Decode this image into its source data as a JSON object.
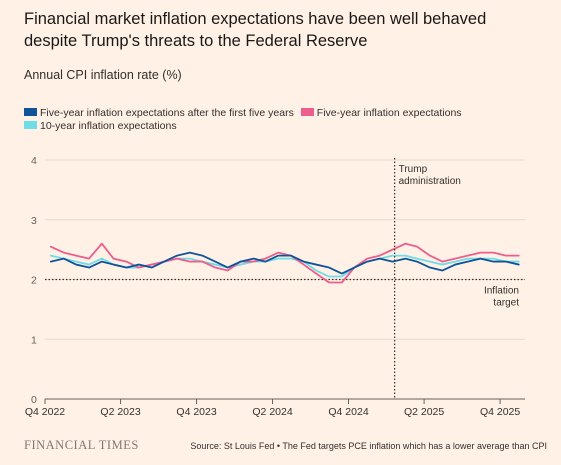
{
  "header": {
    "title": "Financial market inflation expectations have been well behaved despite Trump's threats to the Federal Reserve",
    "subtitle": "Annual CPI inflation rate (%)"
  },
  "footer": {
    "logo": "FINANCIAL TIMES",
    "source": "Source: St Louis Fed • The Fed targets PCE inflation which has a lower average than CPI"
  },
  "chart_data": {
    "type": "line",
    "ylabel": "Annual CPI inflation rate (%)",
    "ylim": [
      0,
      4
    ],
    "yticks": [
      0,
      1,
      2,
      3,
      4
    ],
    "xlim": [
      "2022-10-01",
      "2025-11-30"
    ],
    "xtick_labels": [
      {
        "label": "Q4 2022",
        "date": "2022-10-01"
      },
      {
        "label": "Q2 2023",
        "date": "2023-04-01"
      },
      {
        "label": "Q4 2023",
        "date": "2023-10-01"
      },
      {
        "label": "Q2 2024",
        "date": "2024-04-01"
      },
      {
        "label": "Q4 2024",
        "date": "2024-10-01"
      },
      {
        "label": "Q2 2025",
        "date": "2025-04-01"
      },
      {
        "label": "Q4 2025",
        "date": "2025-10-01"
      }
    ],
    "grid": true,
    "legend_position": "top-left",
    "annotations": [
      {
        "text": "Trump administration",
        "date": "2025-01-20"
      },
      {
        "text": "Inflation target",
        "value": 2
      }
    ],
    "colors": {
      "five_five": "#0f5499",
      "five_year": "#eb5e8d",
      "ten_year": "#70dce6",
      "background": "#fff1e5",
      "grid": "#e6d9ce",
      "axis": "#66605c"
    },
    "x": [
      "2022-10",
      "2022-11",
      "2022-12",
      "2023-01",
      "2023-02",
      "2023-03",
      "2023-04",
      "2023-05",
      "2023-06",
      "2023-07",
      "2023-08",
      "2023-09",
      "2023-10",
      "2023-11",
      "2023-12",
      "2024-01",
      "2024-02",
      "2024-03",
      "2024-04",
      "2024-05",
      "2024-06",
      "2024-07",
      "2024-08",
      "2024-09",
      "2024-10",
      "2024-11",
      "2024-12",
      "2025-01",
      "2025-02",
      "2025-03",
      "2025-04",
      "2025-05",
      "2025-06",
      "2025-07",
      "2025-08",
      "2025-09",
      "2025-10",
      "2025-11"
    ],
    "series": [
      {
        "name": "Five-year inflation expectations after the first five years",
        "values": [
          2.3,
          2.35,
          2.25,
          2.2,
          2.3,
          2.25,
          2.2,
          2.25,
          2.2,
          2.3,
          2.4,
          2.45,
          2.4,
          2.3,
          2.2,
          2.3,
          2.35,
          2.3,
          2.4,
          2.4,
          2.3,
          2.25,
          2.2,
          2.1,
          2.2,
          2.3,
          2.35,
          2.3,
          2.35,
          2.3,
          2.2,
          2.15,
          2.25,
          2.3,
          2.35,
          2.3,
          2.3,
          2.25
        ]
      },
      {
        "name": "Five-year inflation expectations",
        "values": [
          2.55,
          2.45,
          2.4,
          2.35,
          2.6,
          2.35,
          2.3,
          2.2,
          2.25,
          2.3,
          2.35,
          2.3,
          2.3,
          2.2,
          2.15,
          2.3,
          2.3,
          2.35,
          2.45,
          2.4,
          2.25,
          2.1,
          1.95,
          1.95,
          2.2,
          2.35,
          2.4,
          2.5,
          2.6,
          2.55,
          2.4,
          2.3,
          2.35,
          2.4,
          2.45,
          2.45,
          2.4,
          2.4
        ]
      },
      {
        "name": "10-year inflation expectations",
        "values": [
          2.4,
          2.35,
          2.3,
          2.25,
          2.35,
          2.25,
          2.2,
          2.2,
          2.25,
          2.3,
          2.35,
          2.35,
          2.3,
          2.25,
          2.2,
          2.25,
          2.3,
          2.3,
          2.35,
          2.35,
          2.3,
          2.15,
          2.05,
          2.05,
          2.2,
          2.3,
          2.35,
          2.4,
          2.4,
          2.35,
          2.3,
          2.25,
          2.3,
          2.35,
          2.35,
          2.35,
          2.3,
          2.3
        ]
      }
    ]
  }
}
